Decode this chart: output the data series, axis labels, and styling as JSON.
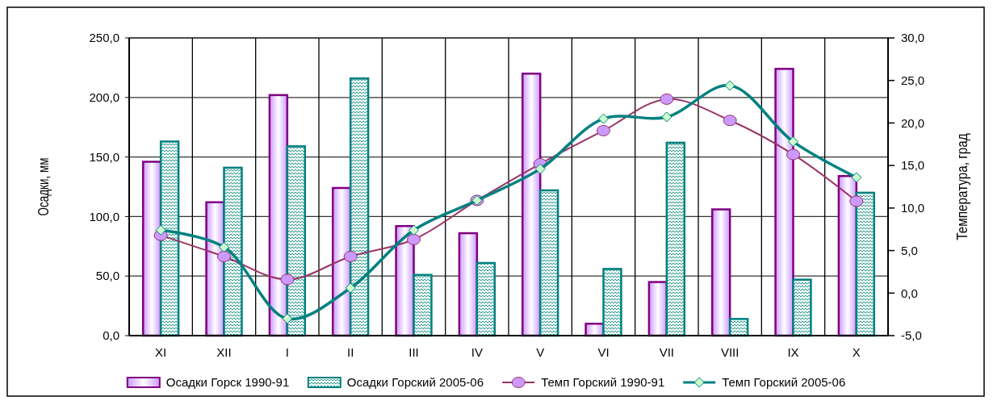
{
  "chart_data": {
    "type": "bar",
    "categories": [
      "XI",
      "XII",
      "I",
      "II",
      "III",
      "IV",
      "V",
      "VI",
      "VII",
      "VIII",
      "IX",
      "X"
    ],
    "ylabel": "Осадки, мм",
    "y2label": "Температура, град",
    "ylim": [
      0,
      250
    ],
    "yticks": [
      {
        "value": 0,
        "label": "0,0"
      },
      {
        "value": 50,
        "label": "50,0"
      },
      {
        "value": 100,
        "label": "100,0"
      },
      {
        "value": 150,
        "label": "150,0"
      },
      {
        "value": 200,
        "label": "200,0"
      },
      {
        "value": 250,
        "label": "250,0"
      }
    ],
    "y2lim": [
      -5,
      30
    ],
    "y2ticks": [
      {
        "value": -5,
        "label": "-5,0"
      },
      {
        "value": 0,
        "label": "0,0"
      },
      {
        "value": 5,
        "label": "5,0"
      },
      {
        "value": 10,
        "label": "10,0"
      },
      {
        "value": 15,
        "label": "15,0"
      },
      {
        "value": 20,
        "label": "20,0"
      },
      {
        "value": 25,
        "label": "25,0"
      },
      {
        "value": 30,
        "label": "30,0"
      }
    ],
    "grid": true,
    "legend": "bottom",
    "series": [
      {
        "name": "Осадки Горск 1990-91",
        "color": "#800080",
        "values": [
          146,
          112,
          202,
          124,
          92,
          86,
          220,
          10,
          45,
          106,
          224,
          134
        ]
      },
      {
        "name": "Осадки Горский 2005-06",
        "color": "#008080",
        "values": [
          163,
          141,
          159,
          216,
          51,
          61,
          122,
          56,
          162,
          14,
          47,
          120
        ]
      },
      {
        "name": "Темп Горский 1990-91",
        "type": "line",
        "axis": "y2",
        "color": "#993366",
        "marker": "circle",
        "values": [
          6.8,
          4.3,
          1.6,
          4.3,
          6.3,
          10.9,
          15.2,
          19.1,
          22.8,
          20.3,
          16.3,
          10.8
        ]
      },
      {
        "name": "Темп Горский 2005-06",
        "type": "line",
        "axis": "y2",
        "color": "#008080",
        "marker": "diamond",
        "values": [
          7.4,
          5.4,
          -3.0,
          0.6,
          7.4,
          10.9,
          14.6,
          20.5,
          20.7,
          24.4,
          17.8,
          13.6
        ]
      }
    ]
  }
}
